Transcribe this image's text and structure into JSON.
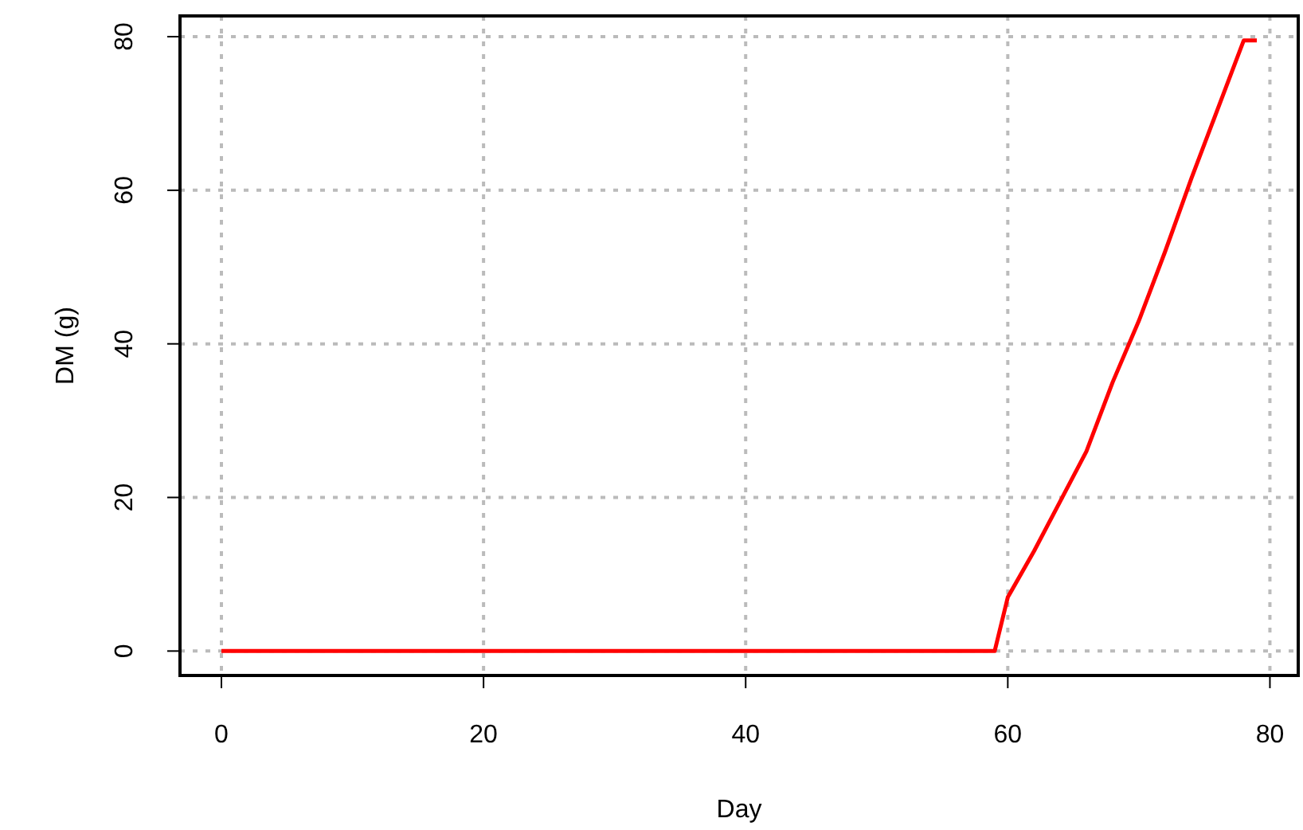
{
  "chart_data": {
    "type": "line",
    "xlabel": "Day",
    "ylabel": "DM (g)",
    "x": [
      0,
      59,
      60,
      62,
      64,
      66,
      68,
      70,
      72,
      74,
      76,
      78,
      79
    ],
    "series": [
      {
        "color": "#ff0000",
        "values": [
          0,
          0,
          7,
          13,
          19.5,
          26,
          35,
          43,
          52,
          61.5,
          70.5,
          79.5,
          79.5
        ]
      }
    ],
    "xlim": [
      -3.16,
      82.16
    ],
    "ylim": [
      -3.18,
      82.7
    ],
    "xticks": [
      0,
      20,
      40,
      60,
      80
    ],
    "yticks": [
      0,
      20,
      40,
      60,
      80
    ],
    "grid": true,
    "line_style": "solid"
  }
}
